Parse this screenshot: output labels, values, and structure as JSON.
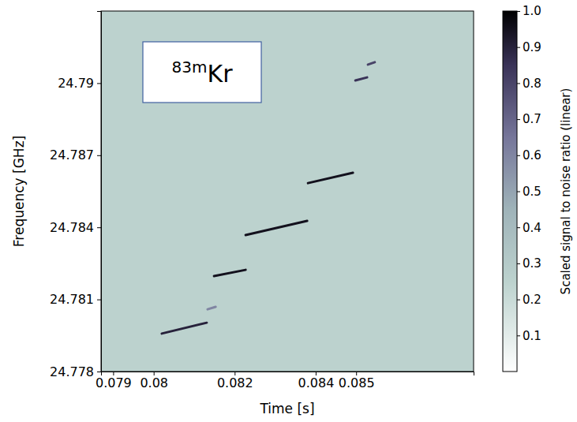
{
  "chart_data": {
    "type": "spectrogram",
    "annotation": {
      "superscript": "83m",
      "text": "Kr"
    },
    "x_label": "Time [s]",
    "y_label": "Frequency [GHz]",
    "xlim": [
      0.0787,
      0.0879
    ],
    "xticks": [
      0.079,
      0.08,
      0.082,
      0.084,
      0.085
    ],
    "ylim": [
      24.778,
      24.793
    ],
    "yticks": [
      24.778,
      24.781,
      24.784,
      24.787,
      24.79
    ],
    "background_snr": 0.25,
    "tracks": [
      {
        "t": [
          0.0802,
          0.08131
        ],
        "f": [
          24.77958,
          24.78003
        ],
        "snr": 0.9
      },
      {
        "t": [
          0.08133,
          0.08153
        ],
        "f": [
          24.78059,
          24.78069
        ],
        "snr": 0.6
      },
      {
        "t": [
          0.08149,
          0.08227
        ],
        "f": [
          24.78197,
          24.78223
        ],
        "snr": 0.95
      },
      {
        "t": [
          0.08227,
          0.08379
        ],
        "f": [
          24.78368,
          24.78427
        ],
        "snr": 0.95
      },
      {
        "t": [
          0.08381,
          0.08492
        ],
        "f": [
          24.78584,
          24.78627
        ],
        "snr": 0.95
      },
      {
        "t": [
          0.08498,
          0.08527
        ],
        "f": [
          24.79011,
          24.79024
        ],
        "snr": 0.85
      },
      {
        "t": [
          0.08529,
          0.08546
        ],
        "f": [
          24.79077,
          24.79087
        ],
        "snr": 0.8
      }
    ],
    "colorbar": {
      "label": "Scaled signal to noise ratio (linear)",
      "range": [
        0,
        1
      ],
      "ticks": [
        0.1,
        0.2,
        0.3,
        0.4,
        0.5,
        0.6,
        0.7,
        0.8,
        0.9,
        {
          "value": 1,
          "label": "1.0"
        }
      ]
    }
  }
}
